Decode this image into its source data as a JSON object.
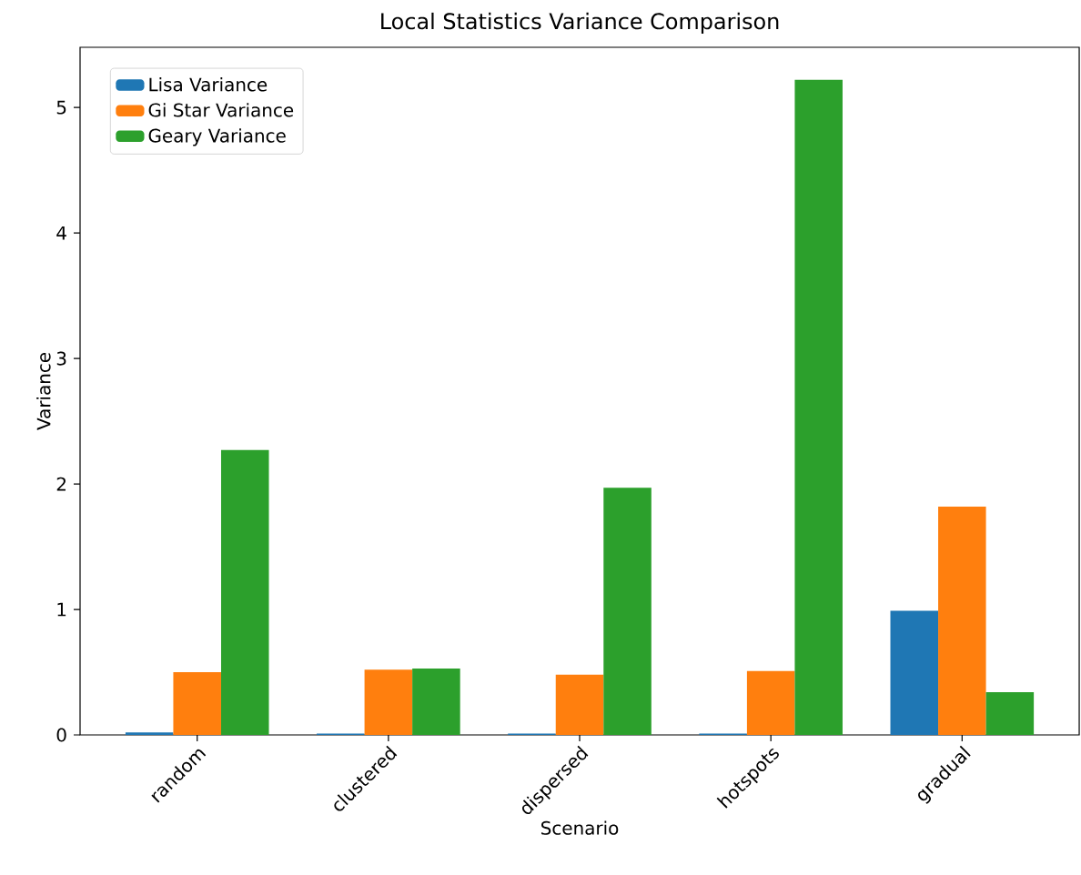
{
  "chart_data": {
    "type": "bar",
    "title": "Local Statistics Variance Comparison",
    "xlabel": "Scenario",
    "ylabel": "Variance",
    "categories": [
      "random",
      "clustered",
      "dispersed",
      "hotspots",
      "gradual"
    ],
    "series": [
      {
        "name": "Lisa Variance",
        "color": "#1f77b4",
        "values": [
          0.02,
          0.01,
          0.01,
          0.01,
          0.99
        ]
      },
      {
        "name": "Gi Star Variance",
        "color": "#ff7f0e",
        "values": [
          0.5,
          0.52,
          0.48,
          0.51,
          1.82
        ]
      },
      {
        "name": "Geary Variance",
        "color": "#2ca02c",
        "values": [
          2.27,
          0.53,
          1.97,
          5.22,
          0.34
        ]
      }
    ],
    "ylim": [
      0,
      5.48
    ],
    "yticks": [
      0,
      1,
      2,
      3,
      4,
      5
    ],
    "legend": "top left"
  }
}
